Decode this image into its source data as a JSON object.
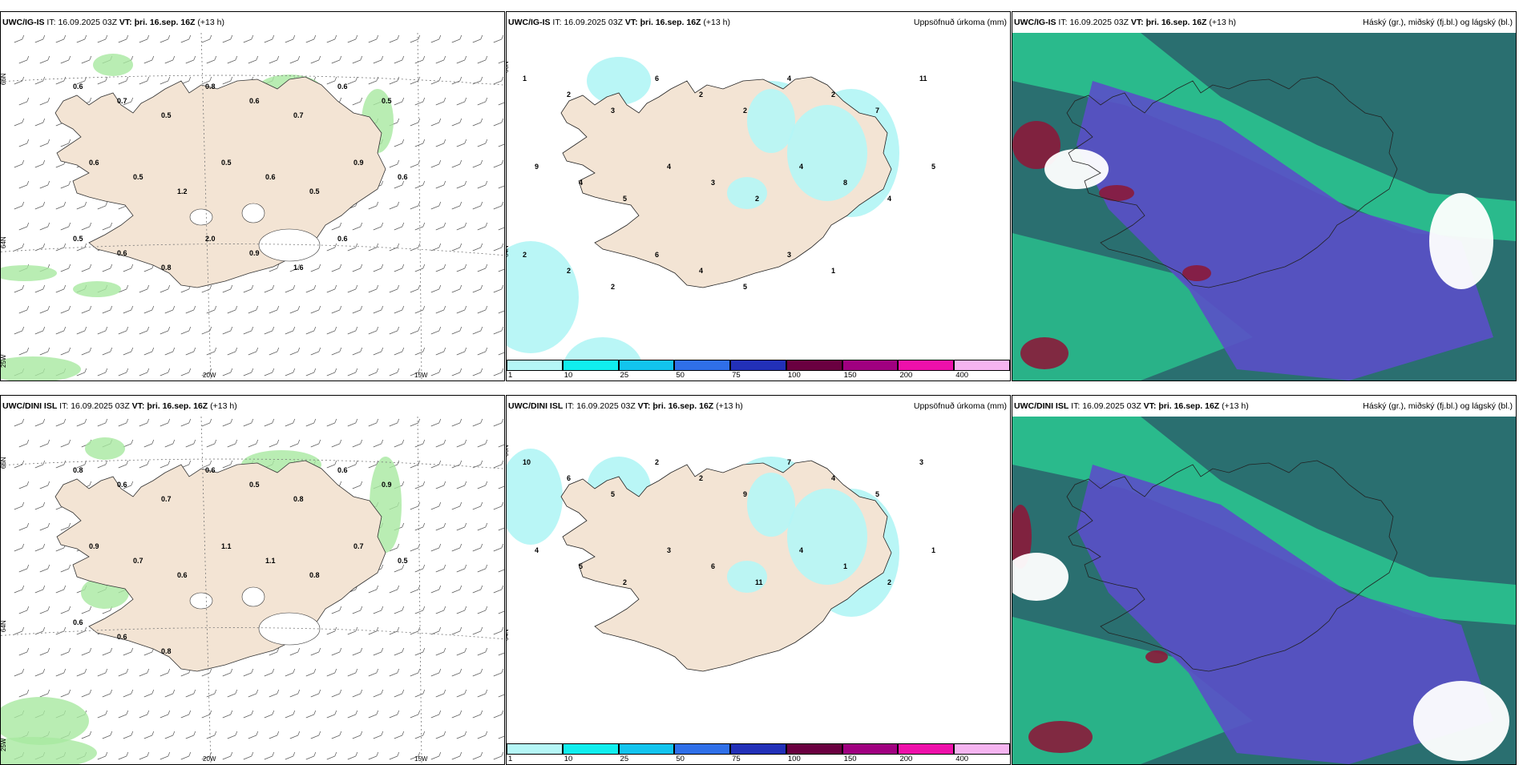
{
  "rows": [
    {
      "model": "UWC/IG-IS",
      "it_label": "IT:",
      "it_value": "16.09.2025 03Z",
      "vt_label": "VT:",
      "vt_value": "þri. 16.sep. 16Z",
      "lead": "(+13 h)"
    },
    {
      "model": "UWC/DINI ISL",
      "it_label": "IT:",
      "it_value": "16.09.2025 03Z",
      "vt_label": "VT:",
      "vt_value": "þri. 16.sep. 16Z",
      "lead": "(+13 h)"
    }
  ],
  "panel_titles": {
    "precip": "Uppsöfnuð úrkoma (mm)",
    "clouds": "Háský (gr.), miðský (fj.bl.) og lágský (bl.)"
  },
  "axis_labels": {
    "lat66": "66N",
    "lat64": "64N",
    "lon20": "20W",
    "lon15": "15W",
    "lon25": "25W"
  },
  "precip_legend": {
    "ticks": [
      "1",
      "10",
      "25",
      "50",
      "75",
      "100",
      "150",
      "200",
      "400"
    ],
    "colors": [
      "#b5f6f6",
      "#10eeee",
      "#12c4ee",
      "#2f6fe8",
      "#2230b8",
      "#6a0040",
      "#a00080",
      "#ee10aa",
      "#f5b4f0"
    ]
  },
  "wind_panel_values": {
    "top": [
      "0.6",
      "0.7",
      "0.5",
      "0.8",
      "0.6",
      "0.7",
      "0.6",
      "0.5",
      "0.6",
      "0.5",
      "1.2",
      "0.5",
      "0.6",
      "0.5",
      "0.9",
      "0.6",
      "0.5",
      "0.6",
      "0.8",
      "2.0",
      "0.9",
      "1.6",
      "0.6"
    ],
    "bottom": [
      "0.8",
      "0.6",
      "0.7",
      "0.6",
      "0.5",
      "0.8",
      "0.6",
      "0.9",
      "0.9",
      "0.7",
      "0.6",
      "1.1",
      "1.1",
      "0.8",
      "0.7",
      "0.5",
      "0.6",
      "0.6",
      "0.8"
    ]
  },
  "precip_panel_values": {
    "top": [
      "1",
      "2",
      "3",
      "6",
      "2",
      "2",
      "4",
      "2",
      "7",
      "11",
      "9",
      "4",
      "5",
      "4",
      "3",
      "2",
      "4",
      "8",
      "4",
      "5",
      "2",
      "2",
      "2",
      "6",
      "4",
      "5",
      "3",
      "1"
    ],
    "bottom": [
      "10",
      "6",
      "5",
      "2",
      "2",
      "9",
      "7",
      "4",
      "5",
      "3",
      "4",
      "5",
      "2",
      "3",
      "6",
      "11",
      "4",
      "1",
      "2",
      "1"
    ]
  },
  "colors": {
    "land": "#f3e4d4",
    "sea_ice_blue": "#b5f6f6",
    "wind_green": "#a8e8a0",
    "cloud_teal": "#2a6f70",
    "cloud_green": "#2ac890",
    "cloud_purple": "#5a4fc8",
    "cloud_red": "#8a1a3a"
  }
}
